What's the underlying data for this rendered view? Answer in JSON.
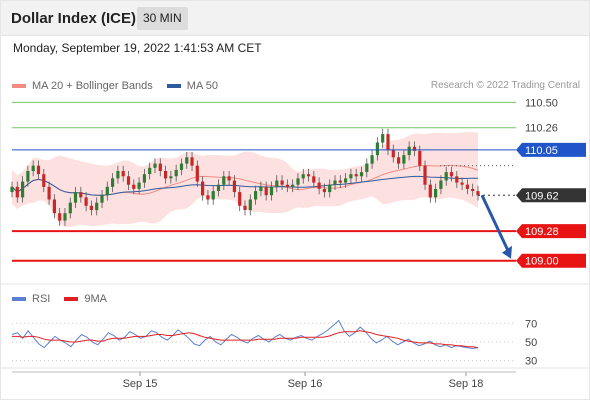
{
  "header": {
    "title": "Dollar Index (ICE)",
    "timeframe": "30 MIN"
  },
  "timestamp": "Monday, September 19, 2022 1:41:53 AM CET",
  "legend_main": [
    {
      "label": "MA 20 + Bollinger Bands",
      "color": "#f28b82"
    },
    {
      "label": "MA 50",
      "color": "#2f5b9e"
    }
  ],
  "source": "Research © 2022 Trading Central",
  "legend_rsi": [
    {
      "label": "RSI",
      "color": "#5b7fd1"
    },
    {
      "label": "9MA",
      "color": "#e02020"
    }
  ],
  "colors": {
    "resistance": "#7cc46a",
    "pivot": "#1f55c9",
    "support": "#e81414",
    "last": "#333333",
    "arrow": "#2a58a8",
    "bb_fill": "#fde0e0",
    "candle_up": "#2e7d32",
    "candle_down": "#c62828"
  },
  "chart_data": [
    {
      "type": "candlestick",
      "title": "Dollar Index (ICE)",
      "interval": "30 MIN",
      "ylim": [
        108.77,
        110.57
      ],
      "x_ticks": [
        "Sep 15",
        "Sep 16",
        "Sep 18"
      ],
      "levels": [
        {
          "value": 110.5,
          "label": "110.50",
          "kind": "resistance"
        },
        {
          "value": 110.26,
          "label": "110.26",
          "kind": "resistance"
        },
        {
          "value": 110.05,
          "label": "110.05",
          "kind": "pivot"
        },
        {
          "value": 109.62,
          "label": "109.62",
          "kind": "last"
        },
        {
          "value": 109.28,
          "label": "109.28",
          "kind": "support"
        },
        {
          "value": 109.0,
          "label": "109.00",
          "kind": "support"
        }
      ],
      "forecast": {
        "from": 109.62,
        "to": 109.0,
        "direction": "down"
      },
      "close_approx": [
        109.7,
        109.6,
        109.75,
        109.85,
        109.9,
        109.82,
        109.7,
        109.58,
        109.45,
        109.38,
        109.45,
        109.55,
        109.65,
        109.6,
        109.52,
        109.48,
        109.55,
        109.62,
        109.7,
        109.78,
        109.85,
        109.8,
        109.72,
        109.68,
        109.74,
        109.82,
        109.88,
        109.92,
        109.85,
        109.78,
        109.8,
        109.86,
        109.92,
        109.98,
        109.9,
        109.75,
        109.62,
        109.58,
        109.66,
        109.72,
        109.8,
        109.76,
        109.65,
        109.52,
        109.48,
        109.58,
        109.66,
        109.7,
        109.62,
        109.7,
        109.76,
        109.72,
        109.7,
        109.72,
        109.78,
        109.82,
        109.8,
        109.74,
        109.68,
        109.65,
        109.72,
        109.76,
        109.74,
        109.78,
        109.82,
        109.8,
        109.84,
        109.92,
        110.0,
        110.12,
        110.2,
        110.05,
        109.98,
        109.92,
        110.0,
        110.08,
        110.04,
        109.9,
        109.72,
        109.6,
        109.68,
        109.76,
        109.84,
        109.8,
        109.74,
        109.72,
        109.68,
        109.66,
        109.62
      ]
    },
    {
      "type": "line",
      "title": "RSI",
      "ylim": [
        20,
        80
      ],
      "y_ticks": [
        70,
        50,
        30
      ],
      "x_ticks": [
        "Sep 15",
        "Sep 16",
        "Sep 18"
      ],
      "series": [
        {
          "name": "RSI",
          "values": [
            58,
            60,
            54,
            62,
            55,
            48,
            44,
            50,
            56,
            52,
            49,
            45,
            52,
            58,
            55,
            50,
            47,
            53,
            60,
            57,
            52,
            55,
            61,
            58,
            54,
            56,
            62,
            60,
            55,
            52,
            57,
            63,
            59,
            54,
            48,
            46,
            52,
            56,
            50,
            47,
            53,
            58,
            55,
            51,
            49,
            54,
            57,
            53,
            50,
            55,
            58,
            54,
            52,
            55,
            57,
            54,
            52,
            56,
            59,
            63,
            68,
            73,
            62,
            56,
            60,
            66,
            61,
            54,
            49,
            52,
            56,
            51,
            47,
            50,
            53,
            49,
            46,
            48,
            51,
            47,
            45,
            47,
            44,
            46,
            45,
            44,
            43,
            44
          ]
        },
        {
          "name": "9MA",
          "values": [
            56,
            56,
            55,
            56,
            56,
            55,
            53,
            52,
            52,
            52,
            51,
            50,
            50,
            51,
            52,
            52,
            51,
            51,
            53,
            54,
            54,
            54,
            55,
            56,
            56,
            56,
            57,
            58,
            58,
            57,
            57,
            58,
            59,
            60,
            59,
            57,
            55,
            54,
            53,
            52,
            52,
            52,
            52,
            52,
            52,
            52,
            53,
            53,
            53,
            53,
            54,
            54,
            54,
            54,
            55,
            55,
            55,
            55,
            55,
            56,
            58,
            60,
            61,
            61,
            61,
            62,
            61,
            60,
            58,
            57,
            56,
            55,
            54,
            52,
            51,
            50,
            49,
            49,
            49,
            48,
            48,
            47,
            47,
            46,
            46,
            45,
            45,
            44
          ]
        }
      ]
    }
  ]
}
